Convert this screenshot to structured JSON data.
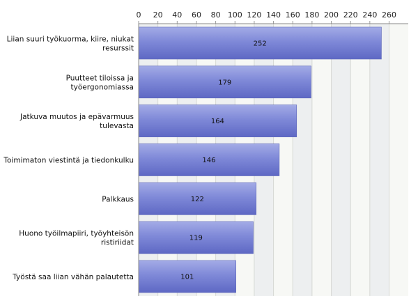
{
  "chart_data": {
    "type": "bar",
    "orientation": "horizontal",
    "categories": [
      [
        "Liian suuri työkuorma, kiire, niukat",
        "resurssit"
      ],
      [
        "Puutteet tiloissa ja",
        "työergonomiassa"
      ],
      [
        "Jatkuva muutos ja epävarmuus",
        "tulevasta"
      ],
      [
        "Toimimaton viestintä ja tiedonkulku"
      ],
      [
        "Palkkaus"
      ],
      [
        "Huono työilmapiiri, työyhteisön",
        "ristiriidat"
      ],
      [
        "Työstä saa liian vähän palautetta"
      ]
    ],
    "values": [
      252,
      179,
      164,
      146,
      122,
      119,
      101
    ],
    "xlim": [
      0,
      280
    ],
    "xticks": [
      0,
      20,
      40,
      60,
      80,
      100,
      120,
      140,
      160,
      180,
      200,
      220,
      240,
      260
    ],
    "xaxis_position": "top",
    "grid": true,
    "bar_color": "#7c87d6",
    "title": "",
    "xlabel": "",
    "ylabel": ""
  }
}
